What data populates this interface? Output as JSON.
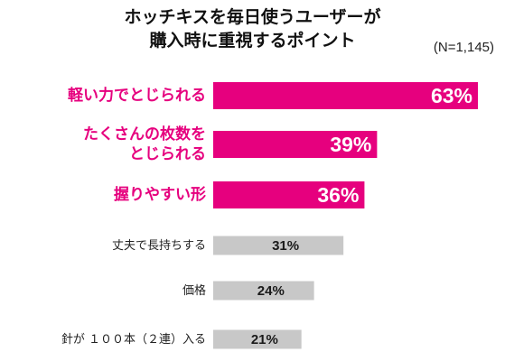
{
  "title_line1": "ホッチキスを毎日使うユーザーが",
  "title_line2": "購入時に重視するポイント",
  "sample_note": "(N=1,145)",
  "colors": {
    "highlight": "#E6007E",
    "normal": "#C8C8C8",
    "highlight_label": "#FFFFFF",
    "normal_label": "#1A1A1A"
  },
  "chart_data": {
    "type": "bar",
    "orientation": "horizontal",
    "categories": [
      "軽い力でとじられる",
      "たくさんの枚数をとじられる",
      "握りやすい形",
      "丈夫で長持ちする",
      "価格",
      "針が１００本（２連）入る"
    ],
    "category_lines": [
      [
        "軽い力でとじられる"
      ],
      [
        "たくさんの枚数を",
        "とじられる"
      ],
      [
        "握りやすい形"
      ],
      [
        "丈夫で長持ちする"
      ],
      [
        "価格"
      ],
      [
        "針が １００本（２連）入る"
      ]
    ],
    "values": [
      63,
      39,
      36,
      31,
      24,
      21
    ],
    "value_labels": [
      "63%",
      "39%",
      "36%",
      "31%",
      "24%",
      "21%"
    ],
    "highlighted": [
      true,
      true,
      true,
      false,
      false,
      false
    ],
    "unit": "%",
    "xlim": [
      0,
      63
    ]
  }
}
